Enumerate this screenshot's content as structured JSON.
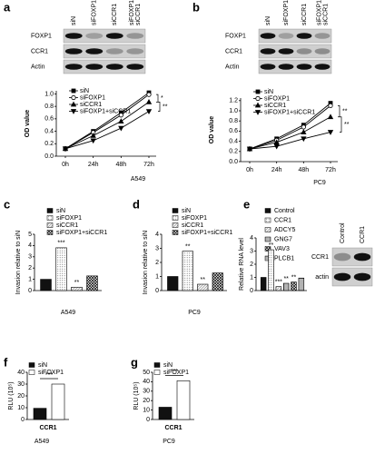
{
  "chart_data": [
    {
      "type": "line",
      "label": "a",
      "blot": {
        "lanes": [
          "siN",
          "siFOXP1",
          "siCCR1",
          [
            "siFOXP1/",
            "siCCR1"
          ]
        ],
        "rows": [
          "FOXP1",
          "CCR1",
          "Actin"
        ]
      },
      "ylabel": "OD value",
      "xlabel": "A549",
      "categories": [
        "0h",
        "24h",
        "48h",
        "72h"
      ],
      "ylim": [
        0,
        1.05
      ],
      "yticks": [
        {
          "value": 0,
          "label": "0.0"
        },
        {
          "value": 0.2,
          "label": "0.2"
        },
        {
          "value": 0.4,
          "label": "0.4"
        },
        {
          "value": 0.6,
          "label": "0.6"
        },
        {
          "value": 0.8,
          "label": "0.8"
        },
        {
          "value": 1,
          "label": "1.0"
        }
      ],
      "series": [
        {
          "name": "siN",
          "marker": "filled-square",
          "color": "#000",
          "values": [
            0.12,
            0.4,
            0.7,
            1.02
          ]
        },
        {
          "name": "siFOXP1",
          "marker": "open-circle",
          "color": "#000",
          "values": [
            0.12,
            0.38,
            0.66,
            0.99
          ]
        },
        {
          "name": "siCCR1",
          "marker": "triangle",
          "color": "#000",
          "values": [
            0.12,
            0.33,
            0.56,
            0.87
          ]
        },
        {
          "name": "siFOXP1+siCCR1",
          "marker": "triangle-down",
          "color": "#000",
          "values": [
            0.12,
            0.25,
            0.45,
            0.72
          ]
        }
      ],
      "annotations": [
        "*",
        "**"
      ]
    },
    {
      "type": "line",
      "label": "b",
      "blot": {
        "lanes": [
          "siN",
          "siFOXP1",
          "siCCR1",
          [
            "siFOXP1/",
            "siCCR1"
          ]
        ],
        "rows": [
          "FOXP1",
          "CCR1",
          "Actin"
        ]
      },
      "ylabel": "OD value",
      "xlabel": "PC9",
      "categories": [
        "0h",
        "24h",
        "48h",
        "72h"
      ],
      "ylim": [
        0,
        1.25
      ],
      "yticks": [
        {
          "value": 0,
          "label": "0.0"
        },
        {
          "value": 0.2,
          "label": "0.2"
        },
        {
          "value": 0.4,
          "label": "0.4"
        },
        {
          "value": 0.6,
          "label": "0.6"
        },
        {
          "value": 0.8,
          "label": "0.8"
        },
        {
          "value": 1,
          "label": "1.0"
        },
        {
          "value": 1.2,
          "label": "1.2"
        }
      ],
      "series": [
        {
          "name": "siN",
          "marker": "filled-square",
          "color": "#000",
          "values": [
            0.25,
            0.45,
            0.72,
            1.15
          ]
        },
        {
          "name": "siFOXP1",
          "marker": "open-circle",
          "color": "#000",
          "values": [
            0.25,
            0.42,
            0.68,
            1.1
          ]
        },
        {
          "name": "siCCR1",
          "marker": "triangle",
          "color": "#000",
          "values": [
            0.25,
            0.38,
            0.58,
            0.88
          ]
        },
        {
          "name": "siFOXP1+siCCR1",
          "marker": "triangle-down",
          "color": "#000",
          "values": [
            0.25,
            0.3,
            0.45,
            0.58
          ]
        }
      ],
      "annotations": [
        "**",
        "**"
      ]
    },
    {
      "type": "bar",
      "label": "c",
      "ylabel": "Invasion relative to siN",
      "xlabel": "A549",
      "categories": [
        null
      ],
      "ylim": [
        0,
        5
      ],
      "yticks": [
        0,
        1,
        2,
        3,
        4,
        5
      ],
      "series": [
        {
          "name": "siN",
          "fill": "black",
          "values": [
            1
          ]
        },
        {
          "name": "siFOXP1",
          "fill": "dots",
          "values": [
            3.8
          ],
          "annotation": "***"
        },
        {
          "name": "siCCR1",
          "fill": "diag",
          "values": [
            0.3
          ],
          "annotation": "**"
        },
        {
          "name": "siFOXP1+siCCR1",
          "fill": "check",
          "values": [
            1.3
          ]
        }
      ]
    },
    {
      "type": "bar",
      "label": "d",
      "ylabel": "Invasion relative to siN",
      "xlabel": "PC9",
      "categories": [
        null
      ],
      "ylim": [
        0,
        4
      ],
      "yticks": [
        0,
        1,
        2,
        3,
        4
      ],
      "series": [
        {
          "name": "siN",
          "fill": "black",
          "values": [
            1
          ]
        },
        {
          "name": "siFOXP1",
          "fill": "dots",
          "values": [
            2.8
          ],
          "annotation": "**"
        },
        {
          "name": "siCCR1",
          "fill": "diag",
          "values": [
            0.45
          ],
          "annotation": "**"
        },
        {
          "name": "siFOXP1+siCCR1",
          "fill": "check",
          "values": [
            1.25
          ]
        }
      ]
    },
    {
      "type": "bar",
      "label": "e",
      "ylabel": "Relative RNA level",
      "categories": [
        null
      ],
      "ylim": [
        0,
        4
      ],
      "yticks": [
        0,
        1,
        2,
        3,
        4
      ],
      "blot": {
        "lanes": [
          "Control",
          "CCR1"
        ],
        "rows": [
          "CCR1",
          "actin"
        ]
      },
      "series": [
        {
          "name": "Control",
          "fill": "black",
          "values": [
            1
          ]
        },
        {
          "name": "CCR1",
          "fill": "dots",
          "values": [
            3.1
          ],
          "annotation": "**"
        },
        {
          "name": "ADCY5",
          "fill": "diag",
          "values": [
            0.3
          ],
          "annotation": "***"
        },
        {
          "name": "GNG7",
          "fill": "vstripe",
          "values": [
            0.55
          ],
          "annotation": "**"
        },
        {
          "name": "VAV3",
          "fill": "check",
          "values": [
            0.65
          ],
          "annotation": "**"
        },
        {
          "name": "PLCB1",
          "fill": "hstripe",
          "values": [
            0.95
          ]
        }
      ]
    },
    {
      "type": "bar",
      "label": "f",
      "ylabel": "RLU (10⁵)",
      "xlabel": "A549",
      "categories": [
        "CCR1"
      ],
      "ylim": [
        0,
        40
      ],
      "yticks": [
        0,
        10,
        20,
        30,
        40
      ],
      "group_annotation": "***",
      "series": [
        {
          "name": "siN",
          "fill": "black",
          "values": [
            9.5
          ]
        },
        {
          "name": "siFOXP1",
          "fill": "white",
          "values": [
            30
          ]
        }
      ]
    },
    {
      "type": "bar",
      "label": "g",
      "ylabel": "RLU (10⁵)",
      "xlabel": "PC9",
      "categories": [
        "CCR1"
      ],
      "ylim": [
        0,
        50
      ],
      "yticks": [
        0,
        10,
        20,
        30,
        40,
        50
      ],
      "group_annotation": "***",
      "series": [
        {
          "name": "siN",
          "fill": "black",
          "values": [
            13
          ]
        },
        {
          "name": "siFOXP1",
          "fill": "white",
          "values": [
            41
          ]
        }
      ]
    }
  ]
}
